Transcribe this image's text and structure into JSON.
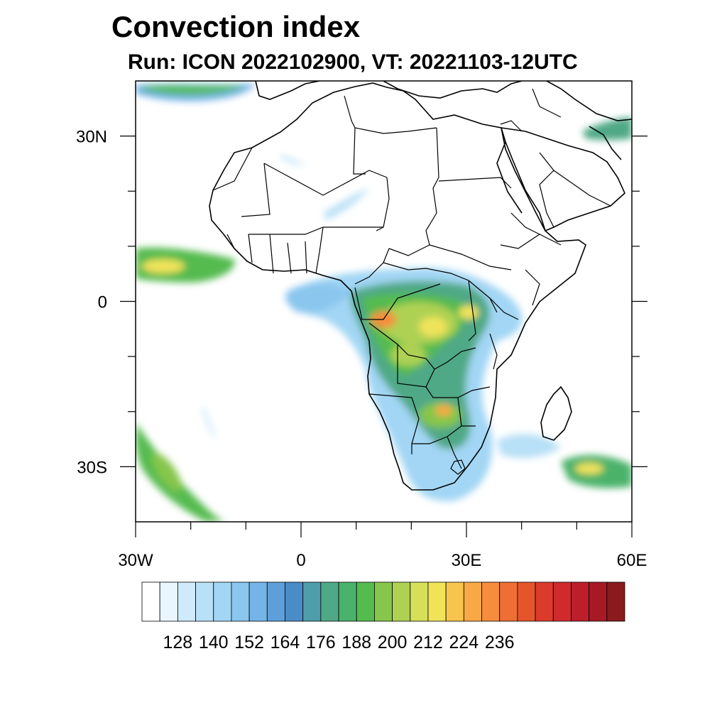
{
  "title": "Convection index",
  "subtitle": "Run: ICON 2022102900,  VT: 20221103-12UTC",
  "map": {
    "projection": "equirectangular",
    "lon_range": [
      -30,
      60
    ],
    "lat_range": [
      -40,
      40
    ],
    "lon_tick_labels": [
      {
        "lon": -30,
        "label": "30W"
      },
      {
        "lon": 0,
        "label": "0"
      },
      {
        "lon": 30,
        "label": "30E"
      },
      {
        "lon": 60,
        "label": "60E"
      }
    ],
    "lat_tick_labels": [
      {
        "lat": 30,
        "label": "30N"
      },
      {
        "lat": 0,
        "label": "0"
      },
      {
        "lat": -30,
        "label": "30S"
      }
    ],
    "minor_lon_ticks": [
      -20,
      -10,
      10,
      20,
      40,
      50
    ],
    "minor_lat_ticks": [
      20,
      10,
      -10,
      -20
    ]
  },
  "colorbar": {
    "colors": [
      "#ffffff",
      "#eaf6fd",
      "#cfeafa",
      "#b8e0f6",
      "#a2d6f4",
      "#8ac6ee",
      "#75b4e6",
      "#5e9fda",
      "#4a8cc8",
      "#4e9eaa",
      "#4fa986",
      "#4bb26b",
      "#55bb4f",
      "#86c64c",
      "#aed153",
      "#d5df5a",
      "#f0e35a",
      "#f7c54e",
      "#f8a946",
      "#f58d3d",
      "#ee6f33",
      "#e4552c",
      "#dc3b2b",
      "#cf2a2c",
      "#bd1f2a",
      "#a71a25",
      "#8b1a1c"
    ],
    "tick_labels": [
      "128",
      "140",
      "152",
      "164",
      "176",
      "188",
      "200",
      "212",
      "224",
      "236"
    ]
  }
}
